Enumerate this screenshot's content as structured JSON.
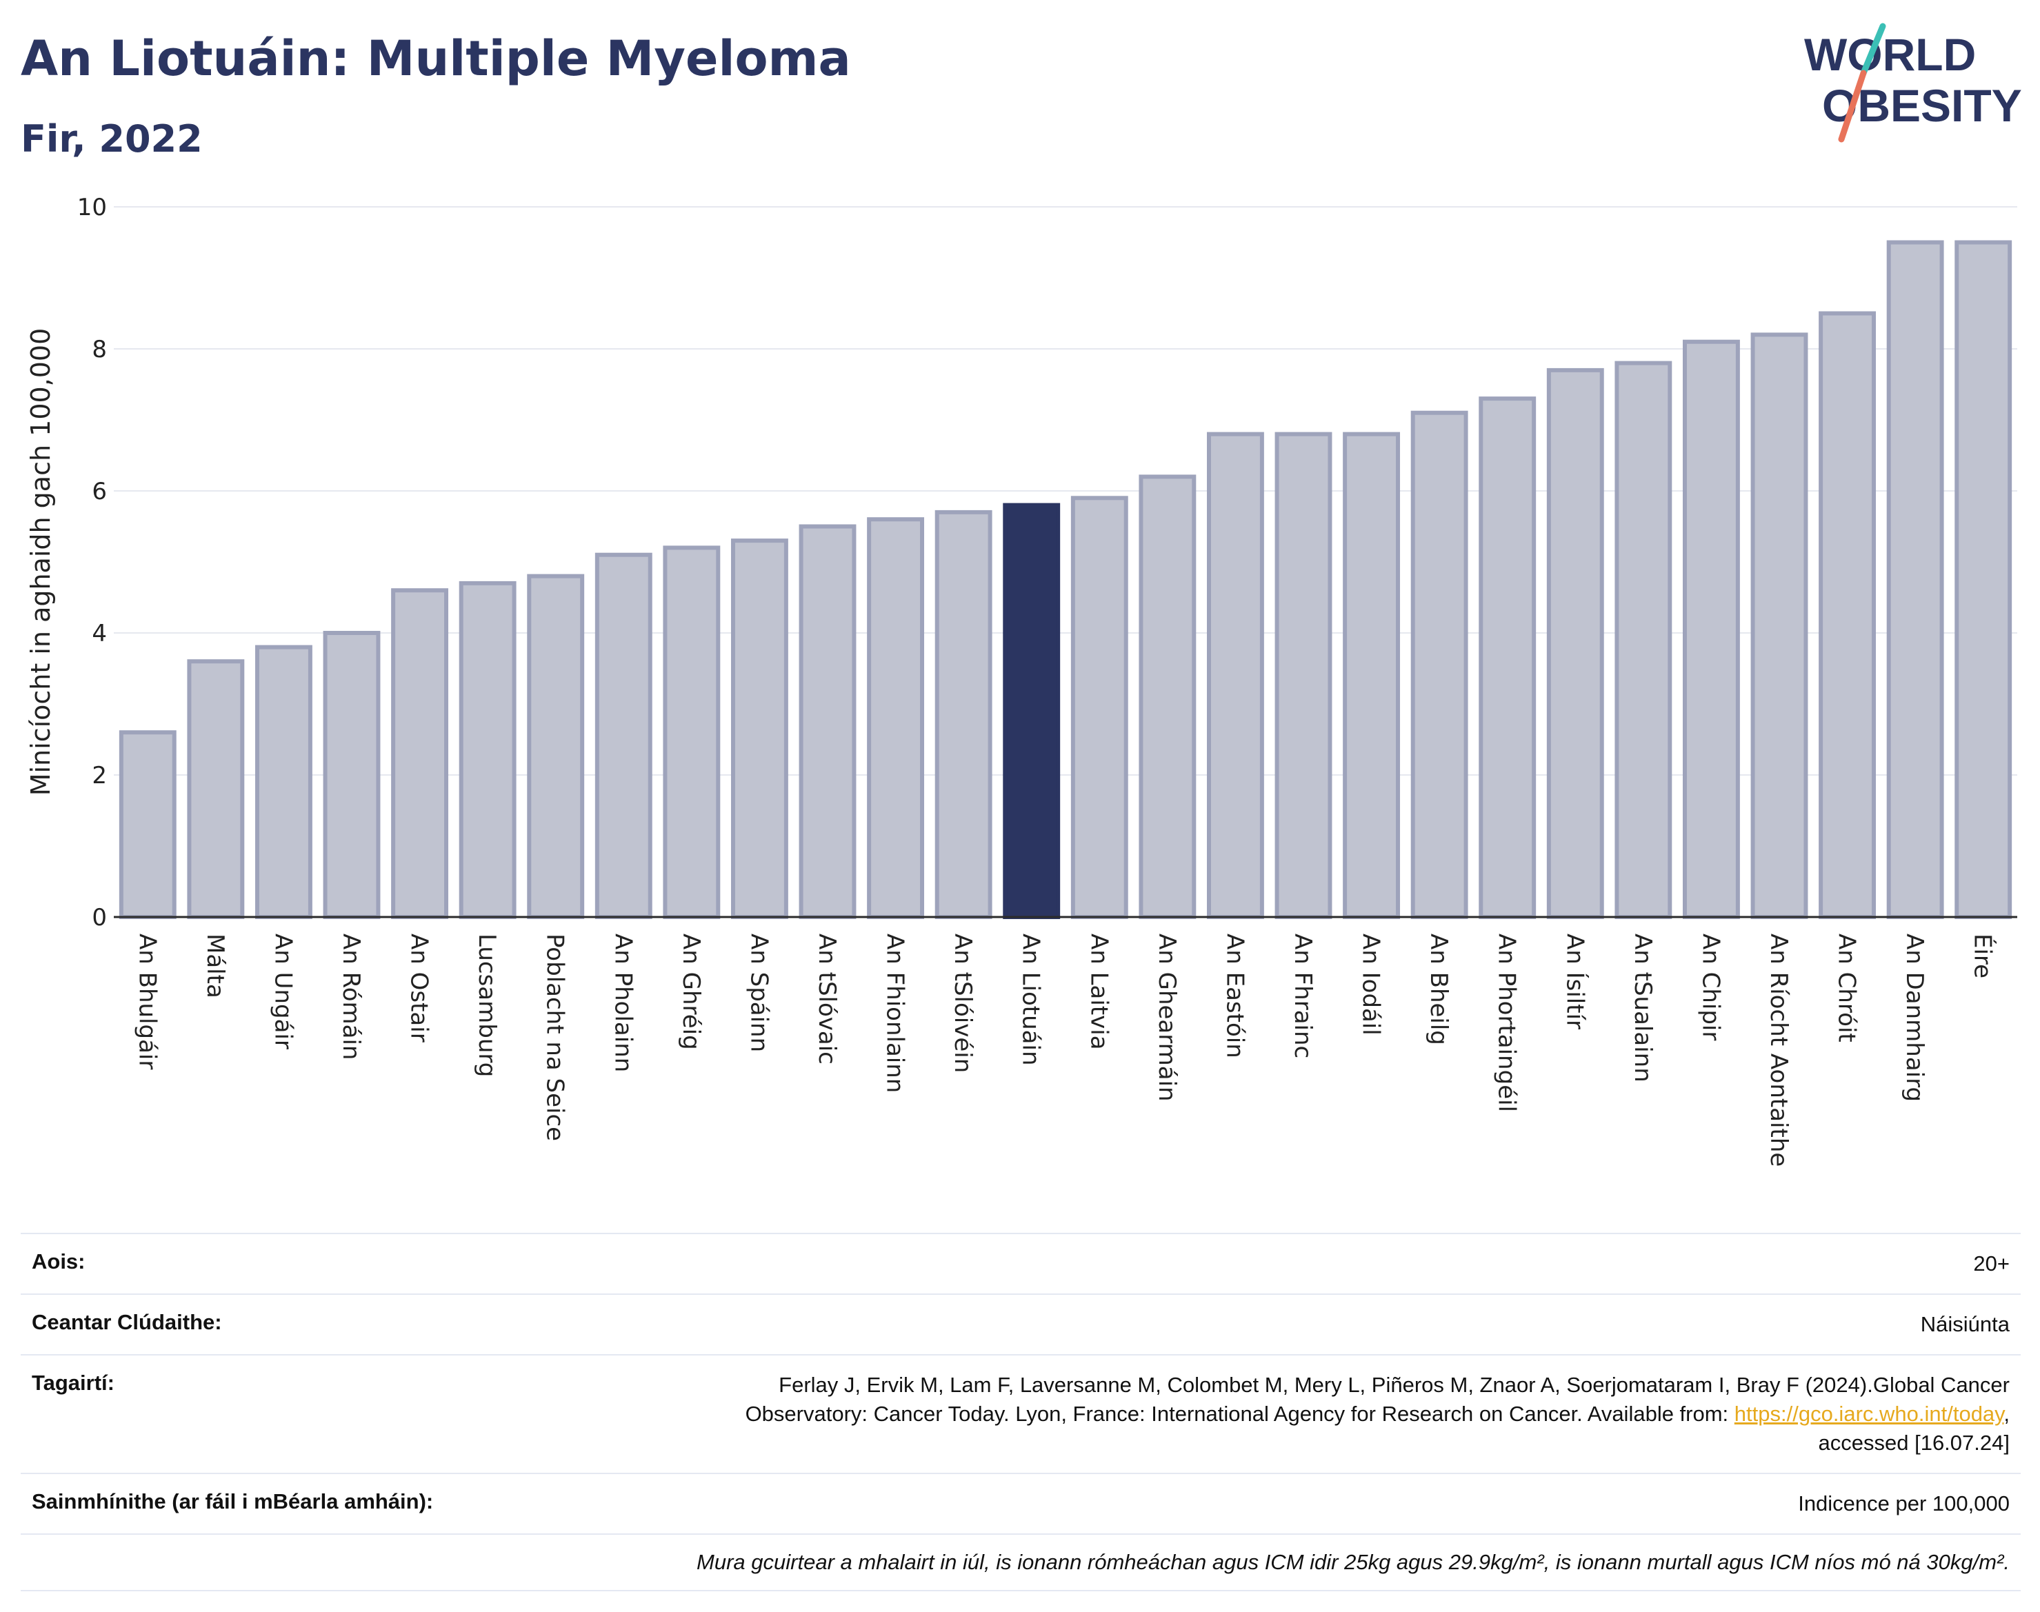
{
  "header": {
    "title": "An Liotuáin: Multiple Myeloma",
    "subtitle": "Fir, 2022"
  },
  "logo": {
    "line1": "WORLD",
    "line2": "OBESITY",
    "colors": {
      "text": "#2b3561",
      "slash_top": "#3bbfb5",
      "slash_bottom": "#e8735a"
    }
  },
  "chart_data": {
    "type": "bar",
    "ylabel": "Minicíocht in aghaidh gach 100,000",
    "xlabel": "",
    "ylim": [
      0,
      10
    ],
    "yticks": [
      0,
      2,
      4,
      6,
      8,
      10
    ],
    "grid": true,
    "highlight": "An Liotuáin",
    "colors": {
      "bar": "#c0c3d0",
      "bar_edge": "#9ea3bb",
      "highlight": "#2b3561"
    },
    "categories": [
      "An Bhulgáir",
      "Málta",
      "An Ungáir",
      "An Rómáin",
      "An Ostair",
      "Lucsamburg",
      "Poblacht na Seice",
      "An Pholainn",
      "An Ghréig",
      "An Spáinn",
      "An tSlóvaic",
      "An Fhionlainn",
      "An tSlóivéin",
      "An Liotuáin",
      "An Laitvia",
      "An Ghearmáin",
      "An Eastóin",
      "An Fhrainc",
      "An Iodáil",
      "An Bheilg",
      "An Phortaingéil",
      "An Ísiltír",
      "An tSualainn",
      "An Chipir",
      "An Ríocht Aontaithe",
      "An Chróit",
      "An Danmhairg",
      "Éire"
    ],
    "values": [
      2.6,
      3.6,
      3.8,
      4.0,
      4.6,
      4.7,
      4.8,
      5.1,
      5.2,
      5.3,
      5.5,
      5.6,
      5.7,
      5.8,
      5.9,
      6.2,
      6.8,
      6.8,
      6.8,
      7.1,
      7.3,
      7.7,
      7.8,
      8.1,
      8.2,
      8.5,
      9.5,
      9.5
    ]
  },
  "info": {
    "age_label": "Aois:",
    "age_value": "20+",
    "area_label": "Ceantar Clúdaithe:",
    "area_value": "Náisiúnta",
    "refs_label": "Tagairtí:",
    "refs_line1": "Ferlay J, Ervik M, Lam F, Laversanne M, Colombet M, Mery L, Piñeros M, Znaor A, Soerjomataram I, Bray F (2024).Global Cancer",
    "refs_line2": "Observatory: Cancer Today. Lyon, France: International Agency for Research on Cancer. Available from: ",
    "refs_link": "https://gco.iarc.who.int/today",
    "refs_line2_end": ",",
    "refs_line3": "accessed [16.07.24]",
    "defs_label": "Sainmhínithe (ar fáil i mBéarla amháin):",
    "defs_value": "Indicence per 100,000",
    "note": "Mura gcuirtear a mhalairt in iúl, is ionann rómheáchan agus ICM idir 25kg agus 29.9kg/m², is ionann murtall agus ICM níos mó ná 30kg/m²."
  }
}
